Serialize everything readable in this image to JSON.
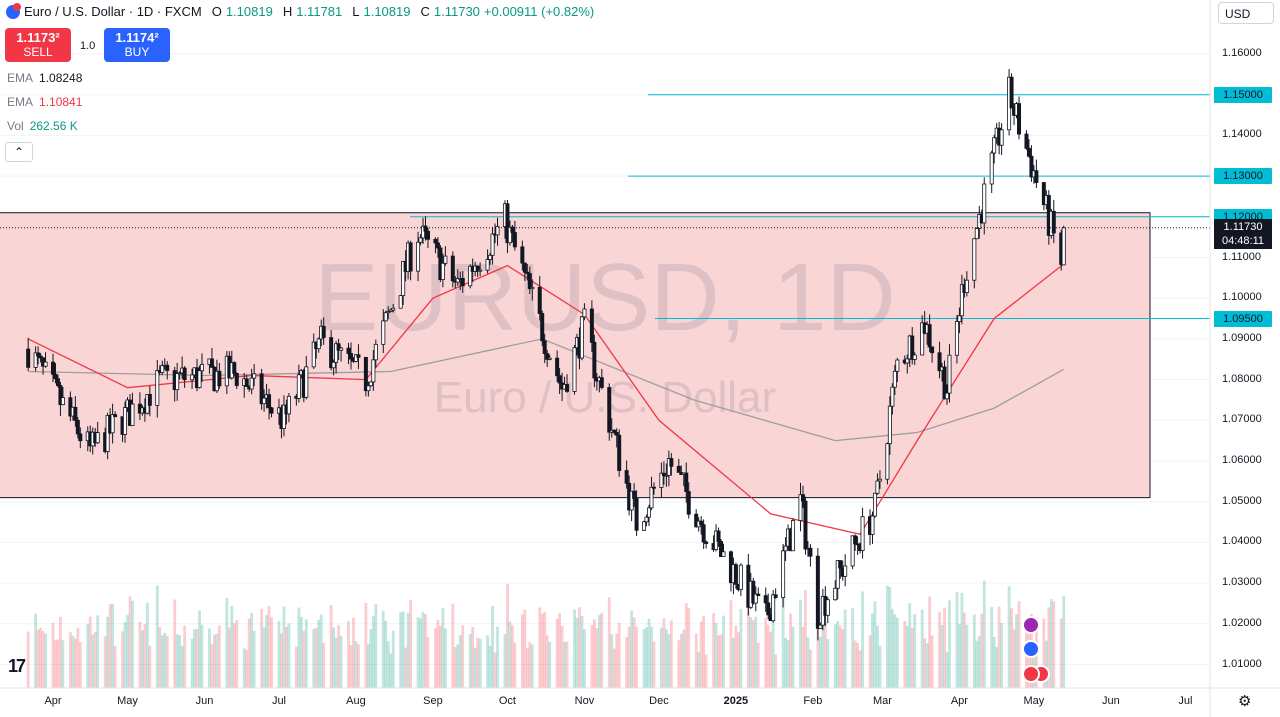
{
  "header": {
    "symbol_title": "Euro / U.S. Dollar · 1D · FXCM",
    "open_label": "O",
    "open_value": "1.10819",
    "high_label": "H",
    "high_value": "1.11781",
    "low_label": "L",
    "low_value": "1.10819",
    "close_label": "C",
    "close_value": "1.11730",
    "change_value": "+0.00911 (+0.82%)"
  },
  "trade": {
    "sell_price": "1.1173²",
    "sell_label": "SELL",
    "quantity": "1.0",
    "buy_price": "1.1174²",
    "buy_label": "BUY"
  },
  "indicators": [
    {
      "name": "EMA",
      "value": "1.08248",
      "color": "#131722"
    },
    {
      "name": "EMA",
      "value": "1.10841",
      "color": "#f23645"
    },
    {
      "name": "Vol",
      "value": "262.56 K",
      "color": "#089981"
    }
  ],
  "currency_button": "USD",
  "watermark": {
    "symbol": "EURUSD, 1D",
    "name": "Euro / U.S. Dollar"
  },
  "price_axis": {
    "ticks": [
      "1.16000",
      "1.15000",
      "1.14000",
      "1.13000",
      "1.12000",
      "1.11000",
      "1.10000",
      "1.09000",
      "1.08000",
      "1.07000",
      "1.06000",
      "1.05000",
      "1.04000",
      "1.03000",
      "1.02000",
      "1.01000"
    ],
    "level_tags": [
      "1.15000",
      "1.13000",
      "1.12000",
      "1.09500"
    ],
    "current_price": "1.11730",
    "countdown": "04:48:11"
  },
  "time_axis": [
    "Apr",
    "May",
    "Jun",
    "Jul",
    "Aug",
    "Sep",
    "Oct",
    "Nov",
    "Dec",
    "2025",
    "Feb",
    "Mar",
    "Apr",
    "May",
    "Jun",
    "Jul"
  ],
  "colors": {
    "up": "#089981",
    "down": "#f23645",
    "level": "#00bcd4",
    "zone": "#f9d5d5",
    "ema_fast": "#f23645",
    "ema_slow": "#9e9e9e"
  },
  "chart_data": {
    "type": "candlestick",
    "title": "Euro / U.S. Dollar · 1D · FXCM",
    "ylim": [
      1.0,
      1.165
    ],
    "horizontal_levels": [
      1.15,
      1.13,
      1.12,
      1.095
    ],
    "range_zone": [
      1.051,
      1.121
    ],
    "close_series": [
      {
        "x": "2024-03-22",
        "y": 1.0875
      },
      {
        "x": "2024-04-16",
        "y": 1.0625
      },
      {
        "x": "2024-05-15",
        "y": 1.08
      },
      {
        "x": "2024-06-14",
        "y": 1.0815
      },
      {
        "x": "2024-07-03",
        "y": 1.07
      },
      {
        "x": "2024-07-18",
        "y": 1.089
      },
      {
        "x": "2024-08-05",
        "y": 1.08
      },
      {
        "x": "2024-08-26",
        "y": 1.116
      },
      {
        "x": "2024-09-11",
        "y": 1.103
      },
      {
        "x": "2024-09-30",
        "y": 1.119
      },
      {
        "x": "2024-10-23",
        "y": 1.078
      },
      {
        "x": "2024-11-01",
        "y": 1.093
      },
      {
        "x": "2024-11-22",
        "y": 1.045
      },
      {
        "x": "2024-12-05",
        "y": 1.06
      },
      {
        "x": "2024-12-20",
        "y": 1.043
      },
      {
        "x": "2025-01-13",
        "y": 1.021
      },
      {
        "x": "2025-01-27",
        "y": 1.05
      },
      {
        "x": "2025-02-03",
        "y": 1.023
      },
      {
        "x": "2025-02-26",
        "y": 1.048
      },
      {
        "x": "2025-03-07",
        "y": 1.084
      },
      {
        "x": "2025-03-18",
        "y": 1.094
      },
      {
        "x": "2025-03-27",
        "y": 1.078
      },
      {
        "x": "2025-04-03",
        "y": 1.105
      },
      {
        "x": "2025-04-21",
        "y": 1.15
      },
      {
        "x": "2025-04-30",
        "y": 1.133
      },
      {
        "x": "2025-05-12",
        "y": 1.109
      },
      {
        "x": "2025-05-13",
        "y": 1.1173
      }
    ],
    "ema_fast": [
      {
        "x": "2024-03-22",
        "y": 1.09
      },
      {
        "x": "2024-05-01",
        "y": 1.078
      },
      {
        "x": "2024-06-20",
        "y": 1.081
      },
      {
        "x": "2024-08-05",
        "y": 1.08
      },
      {
        "x": "2024-09-01",
        "y": 1.1
      },
      {
        "x": "2024-10-01",
        "y": 1.108
      },
      {
        "x": "2024-11-01",
        "y": 1.096
      },
      {
        "x": "2024-12-01",
        "y": 1.07
      },
      {
        "x": "2025-01-15",
        "y": 1.047
      },
      {
        "x": "2025-02-20",
        "y": 1.042
      },
      {
        "x": "2025-03-15",
        "y": 1.065
      },
      {
        "x": "2025-04-15",
        "y": 1.095
      },
      {
        "x": "2025-05-13",
        "y": 1.1084
      }
    ],
    "ema_slow": [
      {
        "x": "2024-03-22",
        "y": 1.082
      },
      {
        "x": "2024-06-01",
        "y": 1.081
      },
      {
        "x": "2024-08-15",
        "y": 1.082
      },
      {
        "x": "2024-10-15",
        "y": 1.09
      },
      {
        "x": "2024-12-15",
        "y": 1.075
      },
      {
        "x": "2025-02-10",
        "y": 1.065
      },
      {
        "x": "2025-03-15",
        "y": 1.067
      },
      {
        "x": "2025-04-15",
        "y": 1.073
      },
      {
        "x": "2025-05-13",
        "y": 1.0825
      }
    ]
  }
}
